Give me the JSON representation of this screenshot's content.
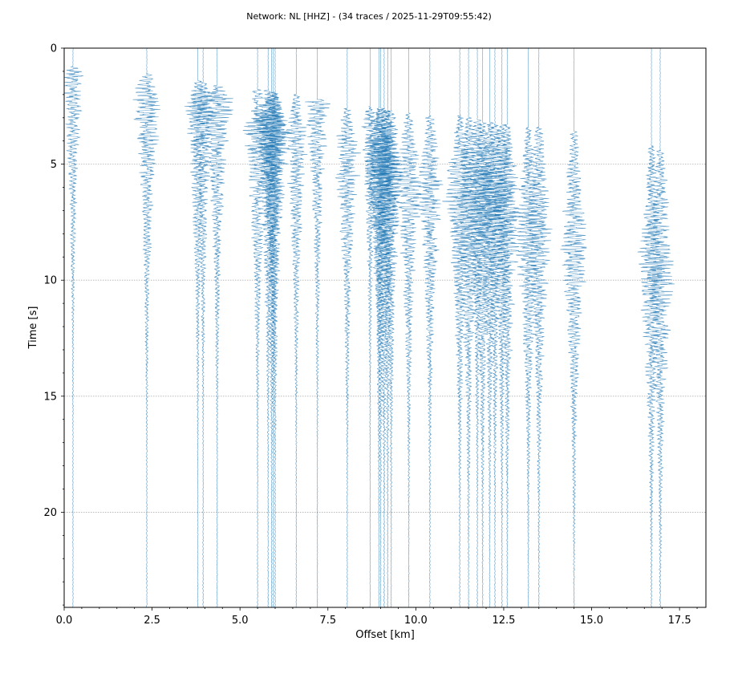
{
  "chart_data": {
    "type": "line",
    "title": "Network: NL [HHZ] - (34 traces / 2025-11-29T09:55:42)",
    "xlabel": "Offset [km]",
    "ylabel": "Time [s]",
    "xlim": [
      0,
      18.25
    ],
    "ylim": [
      24.1,
      0
    ],
    "y_inverted": true,
    "grid": true,
    "xticks": [
      "0.0",
      "2.5",
      "5.0",
      "7.5",
      "10.0",
      "12.5",
      "15.0",
      "17.5"
    ],
    "xtick_values": [
      0,
      2.5,
      5,
      7.5,
      10,
      12.5,
      15,
      17.5
    ],
    "yticks": [
      "0",
      "5",
      "10",
      "15",
      "20"
    ],
    "ytick_values": [
      0,
      5,
      10,
      15,
      20
    ],
    "trace_color": "#1f77b4",
    "traces": [
      {
        "offset": 0.25,
        "onset": 0.8,
        "peak": 1.0,
        "amp": 0.35
      },
      {
        "offset": 2.35,
        "onset": 1.1,
        "peak": 2.3,
        "amp": 0.45
      },
      {
        "offset": 3.8,
        "onset": 1.4,
        "peak": 2.6,
        "amp": 0.4
      },
      {
        "offset": 3.95,
        "onset": 1.5,
        "peak": 2.4,
        "amp": 0.4
      },
      {
        "offset": 4.35,
        "onset": 1.6,
        "peak": 2.2,
        "amp": 0.5
      },
      {
        "offset": 5.5,
        "onset": 1.8,
        "peak": 3.5,
        "amp": 0.45
      },
      {
        "offset": 5.8,
        "onset": 1.8,
        "peak": 3.2,
        "amp": 0.45
      },
      {
        "offset": 5.9,
        "onset": 1.9,
        "peak": 3.5,
        "amp": 0.5
      },
      {
        "offset": 6.0,
        "onset": 1.9,
        "peak": 3.8,
        "amp": 0.45
      },
      {
        "offset": 6.6,
        "onset": 2.0,
        "peak": 4.0,
        "amp": 0.35
      },
      {
        "offset": 7.2,
        "onset": 2.2,
        "peak": 2.3,
        "amp": 0.4
      },
      {
        "offset": 8.05,
        "onset": 2.6,
        "peak": 4.5,
        "amp": 0.4
      },
      {
        "offset": 8.7,
        "onset": 2.5,
        "peak": 3.0,
        "amp": 0.3
      },
      {
        "offset": 9.0,
        "onset": 2.6,
        "peak": 5.0,
        "amp": 0.5
      },
      {
        "offset": 9.1,
        "onset": 2.6,
        "peak": 5.2,
        "amp": 0.5
      },
      {
        "offset": 9.3,
        "onset": 2.7,
        "peak": 5.5,
        "amp": 0.4
      },
      {
        "offset": 9.8,
        "onset": 2.8,
        "peak": 6.0,
        "amp": 0.4
      },
      {
        "offset": 10.4,
        "onset": 2.9,
        "peak": 6.2,
        "amp": 0.4
      },
      {
        "offset": 11.25,
        "onset": 2.9,
        "peak": 6.5,
        "amp": 0.45
      },
      {
        "offset": 11.5,
        "onset": 3.0,
        "peak": 7.2,
        "amp": 0.45
      },
      {
        "offset": 11.75,
        "onset": 3.1,
        "peak": 5.2,
        "amp": 0.45
      },
      {
        "offset": 11.9,
        "onset": 3.2,
        "peak": 7.0,
        "amp": 0.45
      },
      {
        "offset": 12.25,
        "onset": 3.3,
        "peak": 5.8,
        "amp": 0.45
      },
      {
        "offset": 12.45,
        "onset": 3.3,
        "peak": 6.5,
        "amp": 0.45
      },
      {
        "offset": 12.6,
        "onset": 3.3,
        "peak": 7.0,
        "amp": 0.45
      },
      {
        "offset": 13.2,
        "onset": 3.4,
        "peak": 8.0,
        "amp": 0.4
      },
      {
        "offset": 13.5,
        "onset": 3.4,
        "peak": 8.2,
        "amp": 0.4
      },
      {
        "offset": 14.5,
        "onset": 3.6,
        "peak": 8.8,
        "amp": 0.4
      },
      {
        "offset": 16.7,
        "onset": 4.2,
        "peak": 9.8,
        "amp": 0.4
      },
      {
        "offset": 16.95,
        "onset": 4.4,
        "peak": 9.9,
        "amp": 0.45
      },
      {
        "offset": 8.95,
        "onset": 2.6,
        "peak": 4.8,
        "amp": 0.4
      },
      {
        "offset": 5.95,
        "onset": 1.9,
        "peak": 3.3,
        "amp": 0.45
      },
      {
        "offset": 12.1,
        "onset": 3.2,
        "peak": 6.8,
        "amp": 0.4
      },
      {
        "offset": 9.2,
        "onset": 2.7,
        "peak": 5.3,
        "amp": 0.45
      }
    ]
  }
}
